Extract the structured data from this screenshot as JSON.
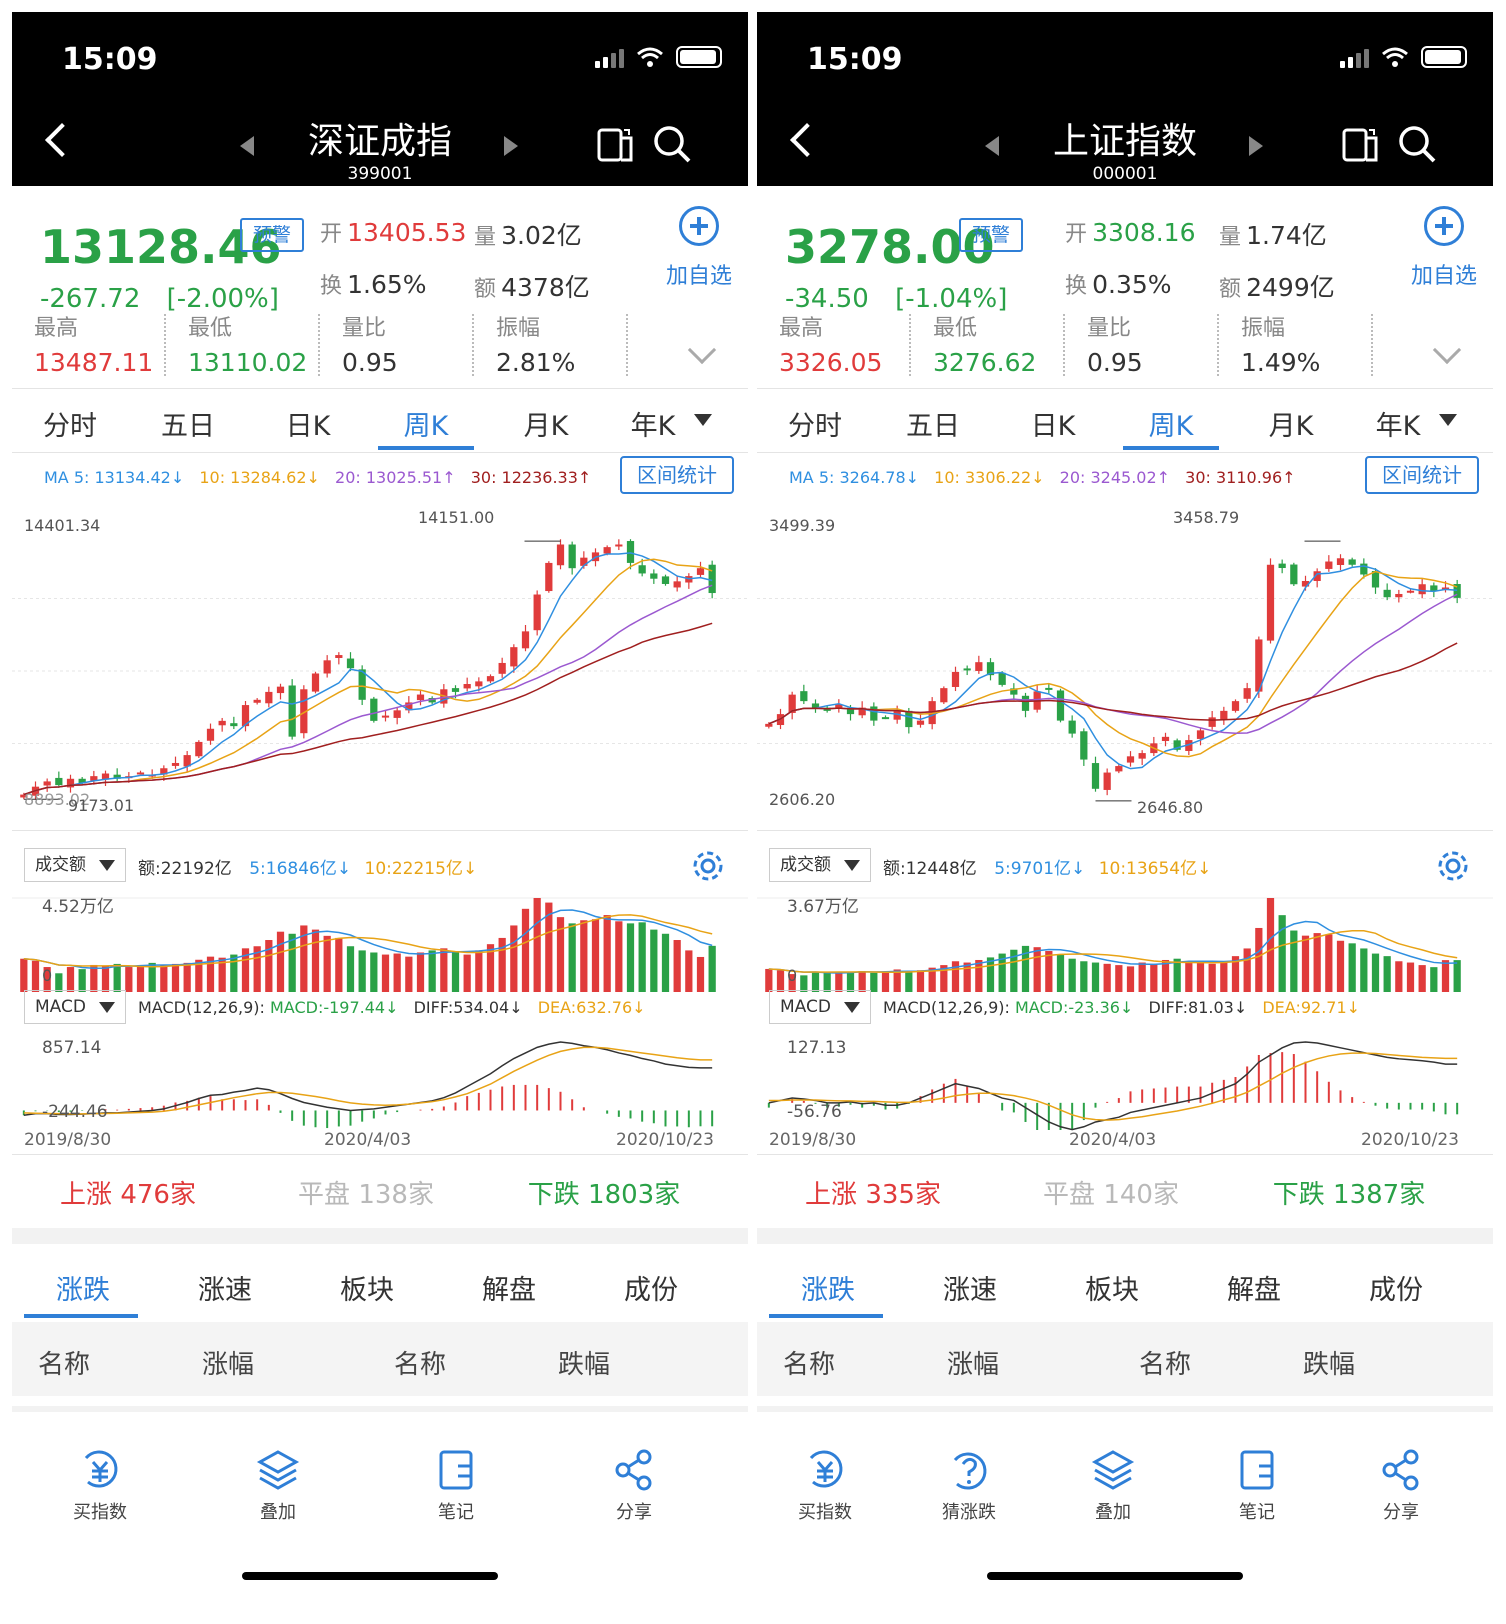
{
  "screens": [
    {
      "status_time": "15:09",
      "index_name": "深证成指",
      "index_code": "399001",
      "price": "13128.46",
      "alert_badge": "预警",
      "change": "-267.72",
      "change_pct": "[-2.00%]",
      "open_label": "开",
      "open_value": "13405.53",
      "volume_label": "量",
      "volume_value": "3.02亿",
      "turnover_label": "换",
      "turnover_value": "1.65%",
      "amount_label": "额",
      "amount_value": "4378亿",
      "add_watch": "加自选",
      "stats": [
        {
          "label": "最高",
          "value": "13487.11",
          "color": "#e03b3b"
        },
        {
          "label": "最低",
          "value": "13110.02",
          "color": "#2aa147"
        },
        {
          "label": "量比",
          "value": "0.95",
          "color": "#333333"
        },
        {
          "label": "振幅",
          "value": "2.81%",
          "color": "#333333"
        }
      ],
      "period_tabs": [
        "分时",
        "五日",
        "日K",
        "周K",
        "月K",
        "年K"
      ],
      "active_period": 3,
      "ma": [
        {
          "text": "MA 5: 13134.42↓",
          "color": "#2f8fe0"
        },
        {
          "text": "10: 13284.62↓",
          "color": "#e8a316"
        },
        {
          "text": "20: 13025.51↑",
          "color": "#9b59d0"
        },
        {
          "text": "30: 12236.33↑",
          "color": "#a01f1f"
        }
      ],
      "range_stats": "区间统计",
      "y_top": "14401.34",
      "y_bottom": "8893.02",
      "high_mark": "14151.00",
      "low_mark": "9173.01",
      "vol_selector": "成交额",
      "vol_info": [
        {
          "text": "额:22192亿",
          "color": "#333333"
        },
        {
          "text": "5:16846亿↓",
          "color": "#2f8fe0"
        },
        {
          "text": "10:22215亿↓",
          "color": "#e8a316"
        }
      ],
      "vol_max": "4.52万亿",
      "vol_zero": "0",
      "macd_selector": "MACD",
      "macd_info": [
        {
          "text": "MACD(12,26,9):",
          "color": "#333333"
        },
        {
          "text": "MACD:-197.44↓",
          "color": "#2aa147"
        },
        {
          "text": "DIFF:534.04↓",
          "color": "#333333"
        },
        {
          "text": "DEA:632.76↓",
          "color": "#e8a316"
        }
      ],
      "macd_top": "857.14",
      "macd_bottom": "-244.46",
      "dates": [
        "2019/8/30",
        "2020/4/03",
        "2020/10/23"
      ],
      "breadth": [
        {
          "label": "上涨",
          "value": "476家",
          "color": "#e03b3b"
        },
        {
          "label": "平盘",
          "value": "138家",
          "color": "#b9b9b9"
        },
        {
          "label": "下跌",
          "value": "1803家",
          "color": "#2aa147"
        }
      ],
      "bottom_tabs": [
        "涨跌",
        "涨速",
        "板块",
        "解盘",
        "成份"
      ],
      "col_headers": [
        "名称",
        "涨幅",
        "名称",
        "跌幅"
      ],
      "toolbar": [
        {
          "label": "买指数",
          "icon": "buy-index-icon"
        },
        {
          "label": "叠加",
          "icon": "layers-icon"
        },
        {
          "label": "笔记",
          "icon": "notes-icon"
        },
        {
          "label": "分享",
          "icon": "share-icon"
        }
      ],
      "chart_data": {
        "type": "candlestick",
        "x_start": "2019/8/30",
        "x_end": "2020/10/23",
        "y_range": [
          8893.02,
          14401.34
        ],
        "high": 14151.0,
        "low": 9173.01,
        "close_series": [
          9300,
          9450,
          9550,
          9480,
          9600,
          9520,
          9650,
          9700,
          9600,
          9650,
          9720,
          9680,
          9800,
          9900,
          10050,
          10300,
          10550,
          10700,
          10600,
          11000,
          11100,
          11250,
          11350,
          10400,
          11300,
          11600,
          11850,
          11950,
          11700,
          11100,
          10700,
          10800,
          10900,
          11050,
          11200,
          11050,
          11300,
          11250,
          11400,
          11450,
          11550,
          11800,
          12100,
          12400,
          13100,
          13700,
          14050,
          13600,
          13800,
          13900,
          14000,
          14050,
          13700,
          13500,
          13400,
          13300,
          13350,
          13450,
          13600,
          13128
        ],
        "volume_series_yi": [
          16000,
          15000,
          12000,
          9000,
          12000,
          11000,
          13000,
          12500,
          13500,
          12000,
          12500,
          14000,
          13000,
          13500,
          14000,
          15500,
          17000,
          16500,
          18000,
          21000,
          22000,
          25000,
          29000,
          28000,
          32000,
          30000,
          27000,
          26000,
          22000,
          20000,
          19000,
          18000,
          18500,
          17000,
          19000,
          20000,
          21000,
          19500,
          18000,
          20000,
          23000,
          26000,
          32000,
          40000,
          45200,
          43000,
          36000,
          33000,
          34500,
          35000,
          37000,
          34000,
          33000,
          33500,
          30000,
          28000,
          25000,
          20000,
          16846,
          22192
        ],
        "macd_diff_series": [
          -60,
          -40,
          -40,
          -50,
          -50,
          -45,
          -40,
          -30,
          -30,
          -20,
          -10,
          0,
          20,
          60,
          100,
          150,
          190,
          200,
          230,
          250,
          280,
          260,
          210,
          150,
          100,
          70,
          40,
          20,
          0,
          10,
          20,
          40,
          60,
          80,
          100,
          120,
          160,
          220,
          300,
          380,
          460,
          560,
          650,
          720,
          790,
          830,
          857,
          840,
          810,
          790,
          760,
          720,
          690,
          650,
          620,
          580,
          560,
          540,
          534,
          534
        ],
        "macd_dea_series": [
          -30,
          -35,
          -38,
          -40,
          -42,
          -42,
          -40,
          -38,
          -35,
          -30,
          -25,
          -20,
          -10,
          10,
          40,
          70,
          100,
          130,
          160,
          185,
          210,
          225,
          225,
          215,
          195,
          175,
          150,
          120,
          95,
          80,
          70,
          65,
          70,
          80,
          95,
          110,
          135,
          170,
          210,
          270,
          330,
          410,
          490,
          560,
          630,
          690,
          740,
          770,
          790,
          790,
          780,
          760,
          740,
          720,
          700,
          680,
          660,
          645,
          633,
          633
        ]
      }
    },
    {
      "status_time": "15:09",
      "index_name": "上证指数",
      "index_code": "000001",
      "price": "3278.00",
      "alert_badge": "预警",
      "change": "-34.50",
      "change_pct": "[-1.04%]",
      "open_label": "开",
      "open_value": "3308.16",
      "volume_label": "量",
      "volume_value": "1.74亿",
      "turnover_label": "换",
      "turnover_value": "0.35%",
      "amount_label": "额",
      "amount_value": "2499亿",
      "add_watch": "加自选",
      "stats": [
        {
          "label": "最高",
          "value": "3326.05",
          "color": "#e03b3b"
        },
        {
          "label": "最低",
          "value": "3276.62",
          "color": "#2aa147"
        },
        {
          "label": "量比",
          "value": "0.95",
          "color": "#333333"
        },
        {
          "label": "振幅",
          "value": "1.49%",
          "color": "#333333"
        }
      ],
      "period_tabs": [
        "分时",
        "五日",
        "日K",
        "周K",
        "月K",
        "年K"
      ],
      "active_period": 3,
      "ma": [
        {
          "text": "MA 5: 3264.78↓",
          "color": "#2f8fe0"
        },
        {
          "text": "10: 3306.22↓",
          "color": "#e8a316"
        },
        {
          "text": "20: 3245.02↑",
          "color": "#9b59d0"
        },
        {
          "text": "30: 3110.96↑",
          "color": "#a01f1f"
        }
      ],
      "range_stats": "区间统计",
      "y_top": "3499.39",
      "y_bottom": "2606.20",
      "high_mark": "3458.79",
      "low_mark": "2646.80",
      "vol_selector": "成交额",
      "vol_info": [
        {
          "text": "额:12448亿",
          "color": "#333333"
        },
        {
          "text": "5:9701亿↓",
          "color": "#2f8fe0"
        },
        {
          "text": "10:13654亿↓",
          "color": "#e8a316"
        }
      ],
      "vol_max": "3.67万亿",
      "vol_zero": "0",
      "macd_selector": "MACD",
      "macd_info": [
        {
          "text": "MACD(12,26,9):",
          "color": "#333333"
        },
        {
          "text": "MACD:-23.36↓",
          "color": "#2aa147"
        },
        {
          "text": "DIFF:81.03↓",
          "color": "#333333"
        },
        {
          "text": "DEA:92.71↓",
          "color": "#e8a316"
        }
      ],
      "macd_top": "127.13",
      "macd_bottom": "-56.76",
      "dates": [
        "2019/8/30",
        "2020/4/03",
        "2020/10/23"
      ],
      "breadth": [
        {
          "label": "上涨",
          "value": "335家",
          "color": "#e03b3b"
        },
        {
          "label": "平盘",
          "value": "140家",
          "color": "#b9b9b9"
        },
        {
          "label": "下跌",
          "value": "1387家",
          "color": "#2aa147"
        }
      ],
      "bottom_tabs": [
        "涨跌",
        "涨速",
        "板块",
        "解盘",
        "成份"
      ],
      "col_headers": [
        "名称",
        "涨幅",
        "名称",
        "跌幅"
      ],
      "toolbar": [
        {
          "label": "买指数",
          "icon": "buy-index-icon"
        },
        {
          "label": "猜涨跌",
          "icon": "guess-icon"
        },
        {
          "label": "叠加",
          "icon": "layers-icon"
        },
        {
          "label": "笔记",
          "icon": "notes-icon"
        },
        {
          "label": "分享",
          "icon": "share-icon"
        }
      ],
      "chart_data": {
        "type": "candlestick",
        "x_start": "2019/8/30",
        "x_end": "2020/10/23",
        "y_range": [
          2606.2,
          3499.39
        ],
        "high": 3458.79,
        "low": 2646.8,
        "close_series": [
          2890,
          2920,
          2980,
          2960,
          2940,
          2930,
          2950,
          2920,
          2940,
          2900,
          2910,
          2930,
          2880,
          2900,
          2960,
          3000,
          3050,
          3060,
          3080,
          3040,
          3010,
          2980,
          2930,
          2990,
          3000,
          2900,
          2860,
          2780,
          2690,
          2740,
          2760,
          2790,
          2800,
          2830,
          2850,
          2810,
          2840,
          2870,
          2910,
          2930,
          2960,
          3000,
          3150,
          3380,
          3370,
          3320,
          3330,
          3360,
          3390,
          3400,
          3380,
          3350,
          3310,
          3280,
          3290,
          3300,
          3320,
          3300,
          3310,
          3278
        ],
        "volume_series_yi": [
          9000,
          8500,
          7000,
          6500,
          8000,
          7500,
          8000,
          7800,
          8200,
          7500,
          8000,
          8800,
          8000,
          8500,
          9500,
          10500,
          12000,
          11500,
          12500,
          13500,
          15000,
          16500,
          18000,
          17500,
          16000,
          14500,
          13000,
          12000,
          11500,
          11000,
          10500,
          10000,
          11500,
          11000,
          12500,
          13000,
          12000,
          11500,
          11000,
          12000,
          14000,
          17000,
          25000,
          36700,
          30000,
          24000,
          22000,
          23000,
          22500,
          20000,
          19000,
          17000,
          15000,
          14000,
          12000,
          11500,
          10500,
          9701,
          12448,
          12448
        ],
        "macd_diff_series": [
          0,
          5,
          10,
          8,
          5,
          0,
          0,
          2,
          -2,
          0,
          -5,
          -5,
          0,
          10,
          20,
          30,
          40,
          35,
          30,
          20,
          10,
          5,
          -10,
          -25,
          -40,
          -50,
          -56,
          -50,
          -40,
          -35,
          -30,
          -20,
          -15,
          -10,
          -5,
          0,
          5,
          10,
          20,
          30,
          40,
          60,
          85,
          100,
          115,
          125,
          127,
          125,
          120,
          115,
          110,
          105,
          100,
          95,
          92,
          90,
          88,
          85,
          81,
          81
        ],
        "macd_dea_series": [
          5,
          5,
          6,
          6,
          6,
          5,
          4,
          4,
          3,
          3,
          2,
          1,
          1,
          3,
          6,
          10,
          15,
          18,
          20,
          20,
          18,
          15,
          10,
          4,
          -5,
          -15,
          -25,
          -32,
          -35,
          -36,
          -35,
          -32,
          -29,
          -25,
          -21,
          -17,
          -12,
          -7,
          -1,
          6,
          13,
          22,
          35,
          48,
          62,
          74,
          84,
          92,
          98,
          102,
          104,
          104,
          103,
          101,
          99,
          97,
          95,
          94,
          93,
          93
        ]
      }
    }
  ]
}
